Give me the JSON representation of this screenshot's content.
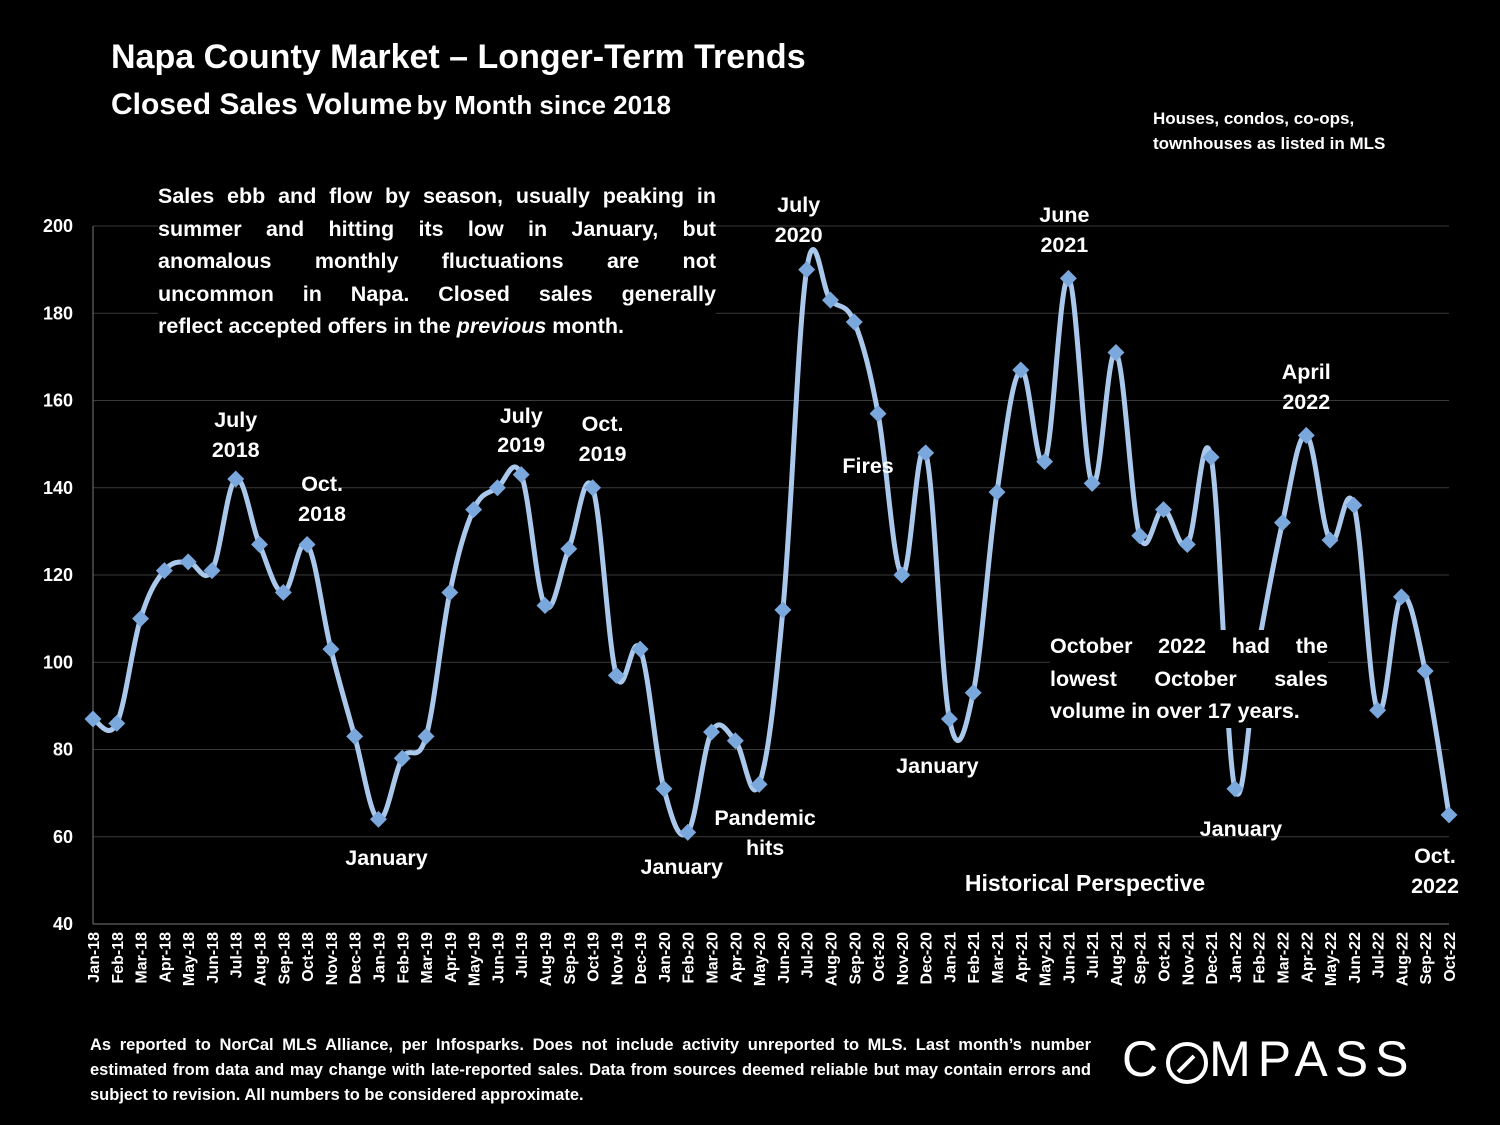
{
  "title": "Napa County Market – Longer-Term Trends",
  "subtitle_big": "Closed Sales Volume",
  "subtitle_small": "by Month since 2018",
  "note_line1": "Houses, condos, co-ops,",
  "note_line2": "townhouses as listed in MLS",
  "callout_lines": [
    "Sales ebb and flow by season, usually peaking in",
    "summer and hitting its low in January, but",
    "anomalous monthly fluctuations are not",
    "uncommon in Napa. Closed sales generally"
  ],
  "callout_last_pre": "reflect accepted offers in the ",
  "callout_last_em": "previous",
  "callout_last_post": " month.",
  "oct_note_lines": [
    "October 2022 had the",
    "lowest October sales",
    "volume in over 17 years."
  ],
  "historical": "Historical Perspective",
  "footer": "As reported to NorCal MLS Alliance, per Infosparks. Does not include activity unreported to MLS. Last month’s number estimated from data and may change with late-reported sales. Data from sources deemed reliable but may contain errors and subject to revision.  All numbers to be considered approximate.",
  "logo_left": "C",
  "logo_right": "MPASS",
  "colors": {
    "line": "#a9c8ec",
    "marker": "#7aa7dc",
    "grid": "#3a3a3a"
  },
  "chart_data": {
    "type": "line",
    "title": "Closed Sales Volume by Month since 2018",
    "ylim": [
      40,
      200
    ],
    "yticks": [
      40,
      60,
      80,
      100,
      120,
      140,
      160,
      180,
      200
    ],
    "categories": [
      "Jan-18",
      "Feb-18",
      "Mar-18",
      "Apr-18",
      "May-18",
      "Jun-18",
      "Jul-18",
      "Aug-18",
      "Sep-18",
      "Oct-18",
      "Nov-18",
      "Dec-18",
      "Jan-19",
      "Feb-19",
      "Mar-19",
      "Apr-19",
      "May-19",
      "Jun-19",
      "Jul-19",
      "Aug-19",
      "Sep-19",
      "Oct-19",
      "Nov-19",
      "Dec-19",
      "Jan-20",
      "Feb-20",
      "Mar-20",
      "Apr-20",
      "May-20",
      "Jun-20",
      "Jul-20",
      "Aug-20",
      "Sep-20",
      "Oct-20",
      "Nov-20",
      "Dec-20",
      "Jan-21",
      "Feb-21",
      "Mar-21",
      "Apr-21",
      "May-21",
      "Jun-21",
      "Jul-21",
      "Aug-21",
      "Sep-21",
      "Oct-21",
      "Nov-21",
      "Dec-21",
      "Jan-22",
      "Feb-22",
      "Mar-22",
      "Apr-22",
      "May-22",
      "Jun-22",
      "Jul-22",
      "Aug-22",
      "Sep-22",
      "Oct-22"
    ],
    "series": [
      {
        "name": "Closed Sales",
        "values": [
          87,
          86,
          110,
          121,
          123,
          121,
          142,
          127,
          116,
          127,
          103,
          83,
          64,
          78,
          83,
          116,
          135,
          140,
          143,
          113,
          126,
          140,
          97,
          103,
          71,
          61,
          84,
          82,
          72,
          112,
          190,
          183,
          178,
          157,
          120,
          148,
          87,
          93,
          139,
          167,
          146,
          188,
          141,
          171,
          129,
          135,
          127,
          147,
          71,
          104,
          132,
          152,
          128,
          136,
          89,
          115,
          98,
          65
        ]
      }
    ],
    "annotations": [
      {
        "lines": [
          "July",
          "2018"
        ],
        "index": 6
      },
      {
        "lines": [
          "Oct.",
          "2018"
        ],
        "index": 9
      },
      {
        "lines": [
          "January"
        ],
        "index": 12
      },
      {
        "lines": [
          "July",
          "2019"
        ],
        "index": 18
      },
      {
        "lines": [
          "Oct.",
          "2019"
        ],
        "index": 21
      },
      {
        "lines": [
          "January"
        ],
        "index": 25
      },
      {
        "lines": [
          "Pandemic",
          "hits"
        ],
        "index": 28
      },
      {
        "lines": [
          "July",
          "2020"
        ],
        "index": 30
      },
      {
        "lines": [
          "Fires"
        ],
        "index": 33
      },
      {
        "lines": [
          "January"
        ],
        "index": 36
      },
      {
        "lines": [
          "June",
          "2021"
        ],
        "index": 41
      },
      {
        "lines": [
          "January"
        ],
        "index": 48
      },
      {
        "lines": [
          "April",
          "2022"
        ],
        "index": 51
      },
      {
        "lines": [
          "Oct.",
          "2022"
        ],
        "index": 57
      }
    ]
  }
}
